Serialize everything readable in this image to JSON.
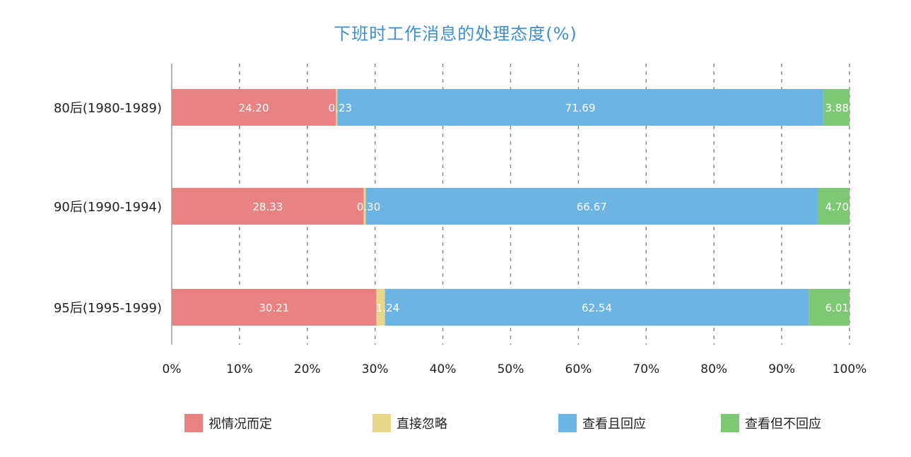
{
  "chart_data": {
    "type": "bar",
    "orientation": "horizontal",
    "stacked": true,
    "title": "下班时工作消息的处理态度(%)",
    "categories": [
      "80后(1980-1989)",
      "90后(1990-1994)",
      "95后(1995-1999)"
    ],
    "series": [
      {
        "name": "视情况而定",
        "color": "#e98283",
        "values": [
          24.2,
          28.33,
          30.21
        ]
      },
      {
        "name": "直接忽略",
        "color": "#e8d689",
        "values": [
          0.23,
          0.3,
          1.24
        ]
      },
      {
        "name": "查看且回应",
        "color": "#6cb4e4",
        "values": [
          71.69,
          66.67,
          62.54
        ]
      },
      {
        "name": "查看但不回应",
        "color": "#7dc775",
        "values": [
          3.88,
          4.7,
          6.01
        ]
      }
    ],
    "value_labels": [
      [
        "24.20",
        "0.23",
        "71.69",
        "3.88"
      ],
      [
        "28.33",
        "0.30",
        "66.67",
        "4.70"
      ],
      [
        "30.21",
        "1.24",
        "62.54",
        "6.01"
      ]
    ],
    "xlim": [
      0,
      100
    ],
    "x_ticks": [
      "0%",
      "10%",
      "20%",
      "30%",
      "40%",
      "50%",
      "60%",
      "70%",
      "80%",
      "90%",
      "100%"
    ],
    "grid": "vertical-dashed",
    "legend_position": "bottom",
    "title_color": "#3d8fd1"
  }
}
